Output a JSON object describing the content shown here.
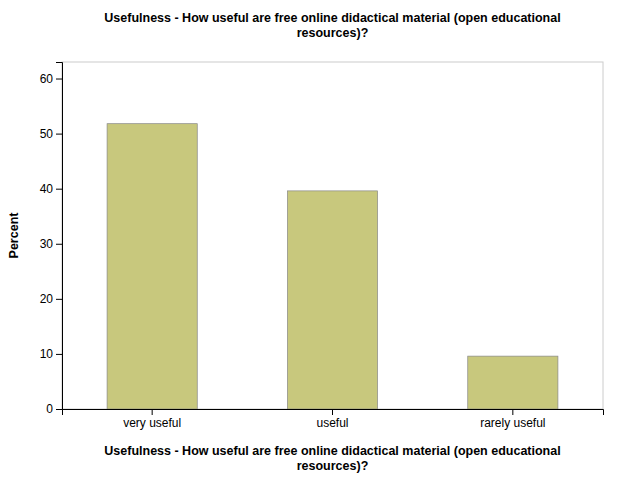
{
  "chart_data": {
    "type": "bar",
    "title": "Usefulness - How useful are free online didactical material (open educational\nresources)?",
    "xlabel": "Usefulness - How useful are free online didactical material (open educational\nresources)?",
    "ylabel": "Percent",
    "categories": [
      "very useful",
      "useful",
      "rarely useful"
    ],
    "values": [
      51.8,
      39.6,
      9.6
    ],
    "color": "#c8c87d",
    "ylim": [
      0,
      63
    ],
    "yticks": [
      0,
      10,
      20,
      30,
      40,
      50,
      60
    ],
    "grid": false
  }
}
